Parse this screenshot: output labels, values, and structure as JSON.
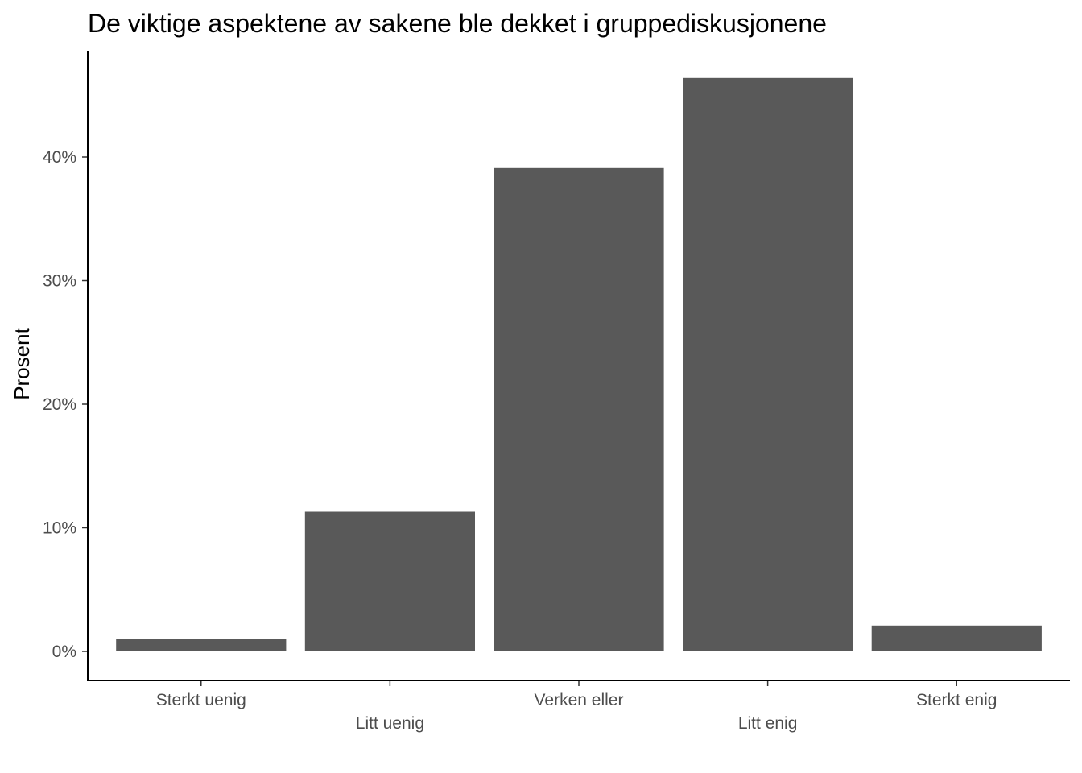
{
  "chart_data": {
    "type": "bar",
    "title": "De viktige aspektene av sakene ble dekket i gruppediskusjonene",
    "xlabel": "",
    "ylabel": "Prosent",
    "categories": [
      "Sterkt uenig",
      "Litt uenig",
      "Verken eller",
      "Litt enig",
      "Sterkt enig"
    ],
    "values": [
      1.0,
      11.3,
      39.1,
      46.4,
      2.1
    ],
    "ylim": [
      0,
      48.5
    ],
    "yticks": [
      0,
      10,
      20,
      30,
      40
    ],
    "ytick_labels": [
      "0%",
      "10%",
      "20%",
      "30%",
      "40%"
    ],
    "bar_color": "#595959",
    "grid": false,
    "legend": "none"
  }
}
